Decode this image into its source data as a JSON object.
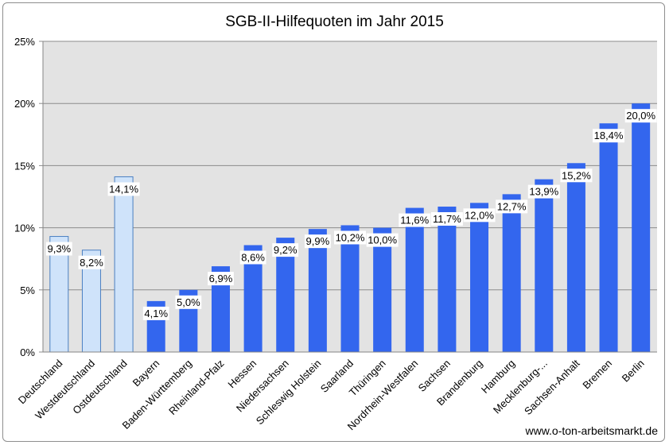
{
  "chart_data": {
    "type": "bar",
    "title": "SGB-II-Hilfequoten im Jahr 2015",
    "categories": [
      "Deutschland",
      "Westdeutschland",
      "Ostdeutschland",
      "Bayern",
      "Baden-Württemberg",
      "Rheinland-Pfalz",
      "Hessen",
      "Niedersachsen",
      "Schleswig Holstein",
      "Saarland",
      "Thüringen",
      "Nordrhein-Westfalen",
      "Sachsen",
      "Brandenburg",
      "Hamburg",
      "Mecklenburg-...",
      "Sachsen-Anhalt",
      "Bremen",
      "Berlin"
    ],
    "values": [
      9.3,
      8.2,
      14.1,
      4.1,
      5.0,
      6.9,
      8.6,
      9.2,
      9.9,
      10.2,
      10.0,
      11.6,
      11.7,
      12.0,
      12.7,
      13.9,
      15.2,
      18.4,
      20.0
    ],
    "data_labels": [
      "9,3%",
      "8,2%",
      "14,1%",
      "4,1%",
      "5,0%",
      "6,9%",
      "8,6%",
      "9,2%",
      "9,9%",
      "10,2%",
      "10,0%",
      "11,6%",
      "11,7%",
      "12,0%",
      "12,7%",
      "13,9%",
      "15,2%",
      "18,4%",
      "20,0%"
    ],
    "highlight_count": 3,
    "ylim": [
      0,
      25
    ],
    "yticks": [
      0,
      5,
      10,
      15,
      20,
      25
    ],
    "ytick_labels": [
      "0%",
      "5%",
      "10%",
      "15%",
      "20%",
      "25%"
    ],
    "xlabel": "",
    "ylabel": "",
    "grid": true,
    "colors": {
      "plot_background": "#e3e3e3",
      "bar_main": "#3366ee",
      "bar_highlight_fill": "#cfe3fa",
      "bar_highlight_border": "#4a7fc1",
      "gridline": "#8c8c8c"
    }
  },
  "source": "www.o-ton-arbeitsmarkt.de"
}
